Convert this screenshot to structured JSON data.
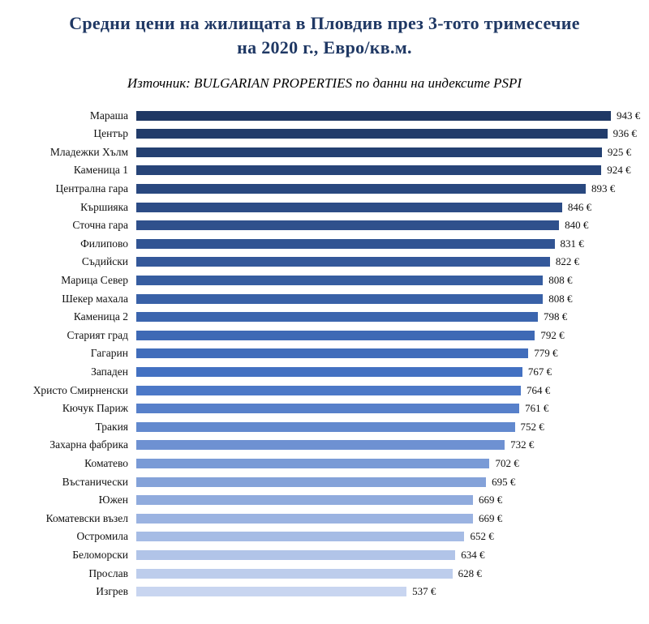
{
  "title": "Средни цени на жилищата в Пловдив през 3-тото тримесечие на 2020 г., Евро/кв.м.",
  "subtitle": "Източник: BULGARIAN PROPERTIES по данни на индексите PSPI",
  "chart_data": {
    "type": "bar",
    "orientation": "horizontal",
    "title": "Средни цени на жилищата в Пловдив през 3-тото тримесечие на 2020 г., Евро/кв.м.",
    "subtitle": "Източник: BULGARIAN PROPERTIES по данни на индексите PSPI",
    "categories": [
      "Мараша",
      "Център",
      "Младежки Хълм",
      "Каменица 1",
      "Централна гара",
      "Кършияка",
      "Сточна гара",
      "Филипово",
      "Съдийски",
      "Марица Север",
      "Шекер махала",
      "Каменица 2",
      "Старият град",
      "Гагарин",
      "Западен",
      "Христо Смирненски",
      "Кючук Париж",
      "Тракия",
      "Захарна фабрика",
      "Коматево",
      "Въстанически",
      "Южен",
      "Коматевски възел",
      "Остромила",
      "Беломорски",
      "Прослав",
      "Изгрев"
    ],
    "values": [
      943,
      936,
      925,
      924,
      893,
      846,
      840,
      831,
      822,
      808,
      808,
      798,
      792,
      779,
      767,
      764,
      761,
      752,
      732,
      702,
      695,
      669,
      669,
      652,
      634,
      628,
      537
    ],
    "value_suffix": " €",
    "xlim": [
      0,
      943
    ],
    "grid": false,
    "legend": "none",
    "bar_color_stops": [
      {
        "pos": 0.0,
        "color": "#1f3864"
      },
      {
        "pos": 0.55,
        "color": "#4472c4"
      },
      {
        "pos": 1.0,
        "color": "#c8d5f0"
      }
    ],
    "title_color": "#1f3864"
  }
}
